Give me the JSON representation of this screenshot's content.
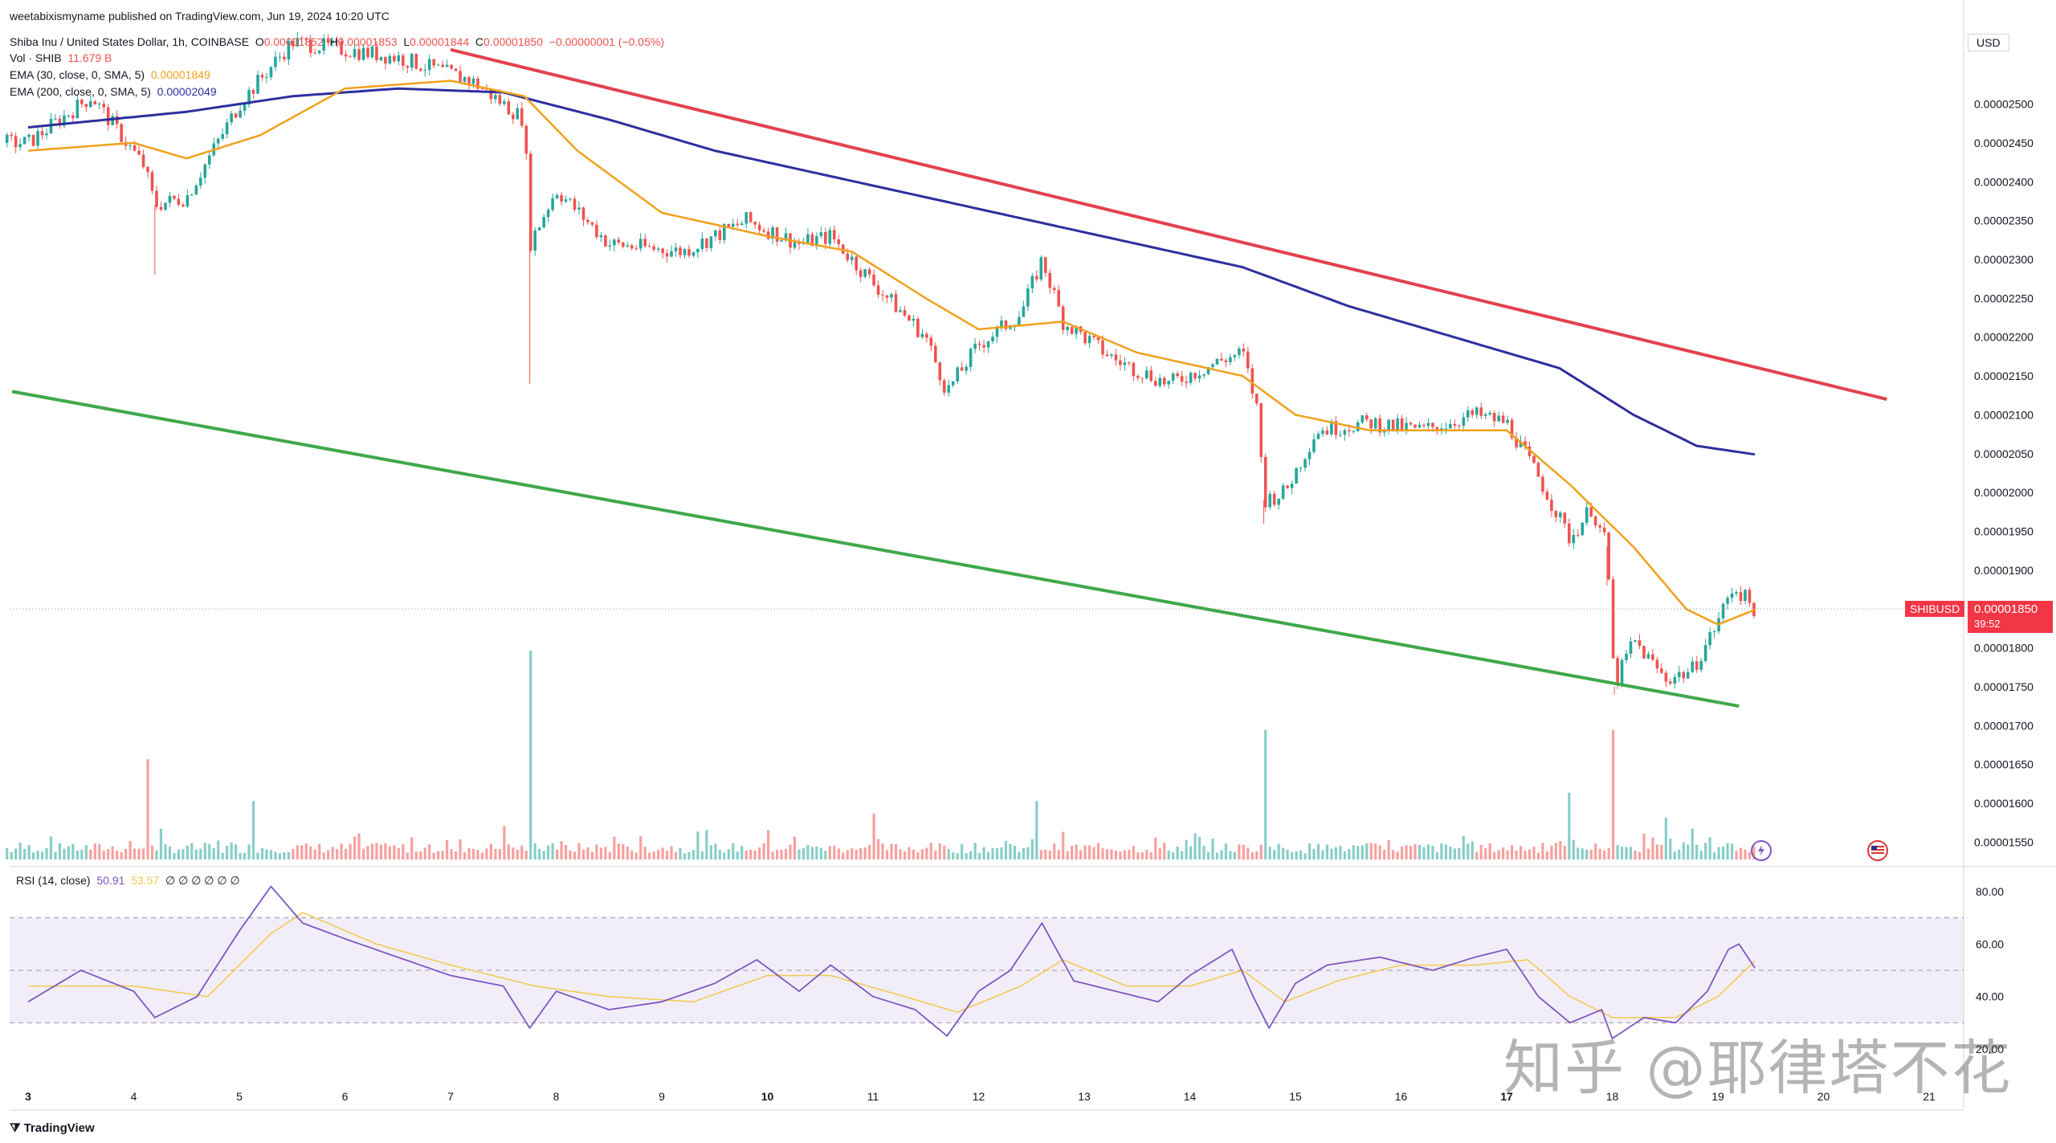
{
  "header": {
    "published": "weetabixismyname published on TradingView.com, Jun 19, 2024 10:20 UTC",
    "symbol": "Shiba Inu / United States Dollar, 1h, COINBASE",
    "o_label": "O",
    "o_value": "0.00001852",
    "h_label": "H",
    "h_value": "0.00001853",
    "l_label": "L",
    "l_value": "0.00001844",
    "c_label": "C",
    "c_value": "0.00001850",
    "change": "−0.00000001 (−0.05%)",
    "vol_label": "Vol · SHIB",
    "vol_value": "11.679 B",
    "ema30_label": "EMA (30, close, 0, SMA, 5)",
    "ema30_value": "0.00001849",
    "ema200_label": "EMA (200, close, 0, SMA, 5)",
    "ema200_value": "0.00002049"
  },
  "rsi_header": {
    "label": "RSI (14, close)",
    "value1": "50.91",
    "value2": "53.57",
    "icons": "∅ ∅ ∅ ∅ ∅ ∅"
  },
  "currency": "USD",
  "price_badge": {
    "symbol": "SHIBUSD",
    "price": "0.00001850",
    "countdown": "39:52"
  },
  "footer": {
    "brand": "TradingView"
  },
  "watermark": "知乎 @耶律塔不花",
  "colors": {
    "up": "#26a69a",
    "down": "#ef5350",
    "ema30": "#f0a11c",
    "ema200": "#2d2f9e",
    "resistance": "#e2424e",
    "support": "#3fa84a",
    "rsi": "#7e57c2",
    "rsi_ma": "#f2c94c"
  },
  "chart_data": [
    {
      "type": "candlestick",
      "title": "Shiba Inu / United States Dollar, 1h, COINBASE",
      "x_ticks": [
        "3",
        "4",
        "5",
        "6",
        "7",
        "8",
        "9",
        "10",
        "11",
        "12",
        "13",
        "14",
        "15",
        "16",
        "17",
        "18",
        "19",
        "20",
        "21"
      ],
      "y_ticks": [
        "0.00002500",
        "0.00002450",
        "0.00002400",
        "0.00002350",
        "0.00002300",
        "0.00002250",
        "0.00002200",
        "0.00002150",
        "0.00002100",
        "0.00002050",
        "0.00002000",
        "0.00001950",
        "0.00001900",
        "0.00001850",
        "0.00001800",
        "0.00001750",
        "0.00001700",
        "0.00001650",
        "0.00001600",
        "0.00001550"
      ],
      "y_range": [
        1.54e-05,
        2.575e-05
      ],
      "price_path": [
        {
          "day": 3.0,
          "close": 2.45e-05
        },
        {
          "day": 3.6,
          "close": 2.51e-05
        },
        {
          "day": 4.1,
          "close": 2.42e-05
        },
        {
          "day": 4.2,
          "close": 2.37e-05
        },
        {
          "day": 4.5,
          "close": 2.38e-05
        },
        {
          "day": 5.0,
          "close": 2.5e-05
        },
        {
          "day": 5.5,
          "close": 2.58e-05
        },
        {
          "day": 6.5,
          "close": 2.56e-05
        },
        {
          "day": 7.2,
          "close": 2.53e-05
        },
        {
          "day": 7.7,
          "close": 2.48e-05
        },
        {
          "day": 7.75,
          "close": 2.32e-05
        },
        {
          "day": 8.0,
          "close": 2.39e-05
        },
        {
          "day": 8.5,
          "close": 2.32e-05
        },
        {
          "day": 9.2,
          "close": 2.31e-05
        },
        {
          "day": 9.8,
          "close": 2.35e-05
        },
        {
          "day": 10.3,
          "close": 2.32e-05
        },
        {
          "day": 10.6,
          "close": 2.33e-05
        },
        {
          "day": 11.0,
          "close": 2.27e-05
        },
        {
          "day": 11.5,
          "close": 2.2e-05
        },
        {
          "day": 11.7,
          "close": 2.13e-05
        },
        {
          "day": 12.0,
          "close": 2.19e-05
        },
        {
          "day": 12.4,
          "close": 2.23e-05
        },
        {
          "day": 12.6,
          "close": 2.3e-05
        },
        {
          "day": 12.8,
          "close": 2.22e-05
        },
        {
          "day": 13.0,
          "close": 2.2e-05
        },
        {
          "day": 13.3,
          "close": 2.17e-05
        },
        {
          "day": 13.8,
          "close": 2.14e-05
        },
        {
          "day": 14.3,
          "close": 2.17e-05
        },
        {
          "day": 14.5,
          "close": 2.18e-05
        },
        {
          "day": 14.65,
          "close": 2.1e-05
        },
        {
          "day": 14.7,
          "close": 1.99e-05
        },
        {
          "day": 14.9,
          "close": 2e-05
        },
        {
          "day": 15.2,
          "close": 2.08e-05
        },
        {
          "day": 15.7,
          "close": 2.09e-05
        },
        {
          "day": 16.2,
          "close": 2.08e-05
        },
        {
          "day": 16.7,
          "close": 2.1e-05
        },
        {
          "day": 17.0,
          "close": 2.09e-05
        },
        {
          "day": 17.3,
          "close": 2.02e-05
        },
        {
          "day": 17.6,
          "close": 1.94e-05
        },
        {
          "day": 17.8,
          "close": 1.98e-05
        },
        {
          "day": 17.95,
          "close": 1.93e-05
        },
        {
          "day": 18.02,
          "close": 1.75e-05
        },
        {
          "day": 18.2,
          "close": 1.81e-05
        },
        {
          "day": 18.5,
          "close": 1.76e-05
        },
        {
          "day": 18.75,
          "close": 1.77e-05
        },
        {
          "day": 18.95,
          "close": 1.82e-05
        },
        {
          "day": 19.15,
          "close": 1.88e-05
        },
        {
          "day": 19.35,
          "close": 1.85e-05
        }
      ],
      "ema30": [
        {
          "day": 3.0,
          "value": 2.44e-05
        },
        {
          "day": 4.0,
          "value": 2.45e-05
        },
        {
          "day": 4.5,
          "value": 2.43e-05
        },
        {
          "day": 5.2,
          "value": 2.46e-05
        },
        {
          "day": 6.0,
          "value": 2.52e-05
        },
        {
          "day": 7.0,
          "value": 2.53e-05
        },
        {
          "day": 7.7,
          "value": 2.51e-05
        },
        {
          "day": 8.2,
          "value": 2.44e-05
        },
        {
          "day": 9.0,
          "value": 2.36e-05
        },
        {
          "day": 10.0,
          "value": 2.33e-05
        },
        {
          "day": 10.8,
          "value": 2.31e-05
        },
        {
          "day": 11.5,
          "value": 2.25e-05
        },
        {
          "day": 12.0,
          "value": 2.21e-05
        },
        {
          "day": 12.8,
          "value": 2.22e-05
        },
        {
          "day": 13.5,
          "value": 2.18e-05
        },
        {
          "day": 14.5,
          "value": 2.15e-05
        },
        {
          "day": 15.0,
          "value": 2.1e-05
        },
        {
          "day": 15.7,
          "value": 2.08e-05
        },
        {
          "day": 16.5,
          "value": 2.08e-05
        },
        {
          "day": 17.0,
          "value": 2.08e-05
        },
        {
          "day": 17.6,
          "value": 2.01e-05
        },
        {
          "day": 18.2,
          "value": 1.93e-05
        },
        {
          "day": 18.7,
          "value": 1.85e-05
        },
        {
          "day": 19.0,
          "value": 1.83e-05
        },
        {
          "day": 19.35,
          "value": 1.849e-05
        }
      ],
      "ema200": [
        {
          "day": 3.0,
          "value": 2.47e-05
        },
        {
          "day": 4.5,
          "value": 2.49e-05
        },
        {
          "day": 5.5,
          "value": 2.51e-05
        },
        {
          "day": 6.5,
          "value": 2.52e-05
        },
        {
          "day": 7.5,
          "value": 2.515e-05
        },
        {
          "day": 8.5,
          "value": 2.48e-05
        },
        {
          "day": 9.5,
          "value": 2.44e-05
        },
        {
          "day": 10.5,
          "value": 2.41e-05
        },
        {
          "day": 11.5,
          "value": 2.38e-05
        },
        {
          "day": 12.5,
          "value": 2.35e-05
        },
        {
          "day": 13.5,
          "value": 2.32e-05
        },
        {
          "day": 14.5,
          "value": 2.29e-05
        },
        {
          "day": 15.5,
          "value": 2.24e-05
        },
        {
          "day": 16.5,
          "value": 2.2e-05
        },
        {
          "day": 17.5,
          "value": 2.16e-05
        },
        {
          "day": 18.2,
          "value": 2.1e-05
        },
        {
          "day": 18.8,
          "value": 2.06e-05
        },
        {
          "day": 19.35,
          "value": 2.049e-05
        }
      ],
      "resistance_line": [
        {
          "day": 7.0,
          "value": 2.57e-05
        },
        {
          "day": 20.6,
          "value": 2.12e-05
        }
      ],
      "support_line": [
        {
          "day": 3.0,
          "value": 2.13e-05
        },
        {
          "day": 19.2,
          "value": 1.725e-05
        }
      ],
      "last_price": 1.85e-05
    },
    {
      "type": "bar",
      "name": "Volume",
      "spikes": [
        {
          "day": 4.15,
          "value": 0.48
        },
        {
          "day": 5.15,
          "value": 0.28
        },
        {
          "day": 7.5,
          "value": 0.16
        },
        {
          "day": 7.75,
          "value": 1.0
        },
        {
          "day": 10.0,
          "value": 0.14
        },
        {
          "day": 11.0,
          "value": 0.22
        },
        {
          "day": 12.55,
          "value": 0.28
        },
        {
          "day": 14.7,
          "value": 0.62
        },
        {
          "day": 17.6,
          "value": 0.32
        },
        {
          "day": 18.0,
          "value": 0.62
        },
        {
          "day": 18.5,
          "value": 0.2
        }
      ]
    },
    {
      "type": "line",
      "name": "RSI (14, close)",
      "y_ticks": [
        "80.00",
        "60.00",
        "40.00",
        "20.00"
      ],
      "y_range": [
        10,
        86
      ],
      "band": [
        30,
        70
      ],
      "midline": 50,
      "rsi": [
        {
          "day": 3.0,
          "value": 38
        },
        {
          "day": 3.5,
          "value": 50
        },
        {
          "day": 4.0,
          "value": 42
        },
        {
          "day": 4.2,
          "value": 32
        },
        {
          "day": 4.6,
          "value": 40
        },
        {
          "day": 5.0,
          "value": 65
        },
        {
          "day": 5.3,
          "value": 82
        },
        {
          "day": 5.6,
          "value": 68
        },
        {
          "day": 6.0,
          "value": 62
        },
        {
          "day": 6.5,
          "value": 55
        },
        {
          "day": 7.0,
          "value": 48
        },
        {
          "day": 7.5,
          "value": 44
        },
        {
          "day": 7.75,
          "value": 28
        },
        {
          "day": 8.0,
          "value": 42
        },
        {
          "day": 8.5,
          "value": 35
        },
        {
          "day": 9.0,
          "value": 38
        },
        {
          "day": 9.5,
          "value": 45
        },
        {
          "day": 9.9,
          "value": 54
        },
        {
          "day": 10.3,
          "value": 42
        },
        {
          "day": 10.6,
          "value": 52
        },
        {
          "day": 11.0,
          "value": 40
        },
        {
          "day": 11.4,
          "value": 35
        },
        {
          "day": 11.7,
          "value": 25
        },
        {
          "day": 12.0,
          "value": 42
        },
        {
          "day": 12.3,
          "value": 50
        },
        {
          "day": 12.6,
          "value": 68
        },
        {
          "day": 12.9,
          "value": 46
        },
        {
          "day": 13.3,
          "value": 42
        },
        {
          "day": 13.7,
          "value": 38
        },
        {
          "day": 14.0,
          "value": 48
        },
        {
          "day": 14.4,
          "value": 58
        },
        {
          "day": 14.6,
          "value": 40
        },
        {
          "day": 14.75,
          "value": 28
        },
        {
          "day": 15.0,
          "value": 45
        },
        {
          "day": 15.3,
          "value": 52
        },
        {
          "day": 15.8,
          "value": 55
        },
        {
          "day": 16.3,
          "value": 50
        },
        {
          "day": 16.7,
          "value": 55
        },
        {
          "day": 17.0,
          "value": 58
        },
        {
          "day": 17.3,
          "value": 40
        },
        {
          "day": 17.6,
          "value": 30
        },
        {
          "day": 17.9,
          "value": 35
        },
        {
          "day": 18.0,
          "value": 24
        },
        {
          "day": 18.3,
          "value": 32
        },
        {
          "day": 18.6,
          "value": 30
        },
        {
          "day": 18.9,
          "value": 42
        },
        {
          "day": 19.1,
          "value": 58
        },
        {
          "day": 19.2,
          "value": 60
        },
        {
          "day": 19.35,
          "value": 50.91
        }
      ],
      "rsi_ma": [
        {
          "day": 3.0,
          "value": 44
        },
        {
          "day": 4.0,
          "value": 44
        },
        {
          "day": 4.7,
          "value": 40
        },
        {
          "day": 5.3,
          "value": 64
        },
        {
          "day": 5.6,
          "value": 72
        },
        {
          "day": 6.3,
          "value": 60
        },
        {
          "day": 7.0,
          "value": 52
        },
        {
          "day": 7.8,
          "value": 44
        },
        {
          "day": 8.5,
          "value": 40
        },
        {
          "day": 9.3,
          "value": 38
        },
        {
          "day": 10.0,
          "value": 48
        },
        {
          "day": 10.6,
          "value": 48
        },
        {
          "day": 11.3,
          "value": 40
        },
        {
          "day": 11.8,
          "value": 34
        },
        {
          "day": 12.4,
          "value": 44
        },
        {
          "day": 12.8,
          "value": 54
        },
        {
          "day": 13.4,
          "value": 44
        },
        {
          "day": 14.0,
          "value": 44
        },
        {
          "day": 14.5,
          "value": 50
        },
        {
          "day": 14.9,
          "value": 38
        },
        {
          "day": 15.4,
          "value": 46
        },
        {
          "day": 16.0,
          "value": 52
        },
        {
          "day": 16.7,
          "value": 52
        },
        {
          "day": 17.2,
          "value": 54
        },
        {
          "day": 17.6,
          "value": 40
        },
        {
          "day": 18.0,
          "value": 32
        },
        {
          "day": 18.6,
          "value": 32
        },
        {
          "day": 19.0,
          "value": 40
        },
        {
          "day": 19.35,
          "value": 53.57
        }
      ]
    }
  ]
}
